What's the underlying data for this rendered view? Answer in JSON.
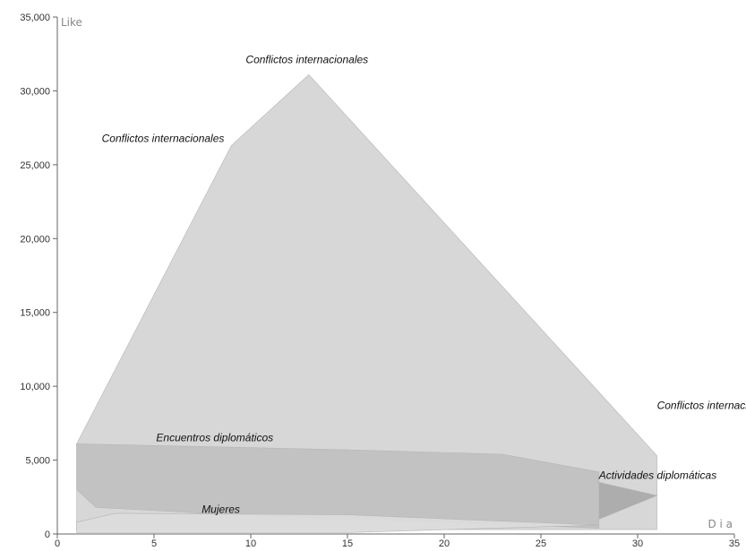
{
  "chart_data": {
    "type": "area",
    "xlabel": "D i a",
    "ylabel": "Like",
    "xlim": [
      0,
      35
    ],
    "ylim": [
      0,
      35000
    ],
    "x_ticks": [
      0,
      5,
      10,
      15,
      20,
      25,
      30,
      35
    ],
    "y_ticks": [
      0,
      5000,
      10000,
      15000,
      20000,
      25000,
      30000,
      35000
    ],
    "y_tick_labels": [
      "0",
      "5,000",
      "10,000",
      "15,000",
      "20,000",
      "25,000",
      "30,000",
      "35,000"
    ],
    "grid": false,
    "series": [
      {
        "label": "Conflictos internacionales",
        "color": "#d4d4d4",
        "points": [
          [
            1,
            6100
          ],
          [
            9,
            26300
          ],
          [
            13,
            31100
          ],
          [
            31,
            5300
          ],
          [
            31,
            300
          ],
          [
            1,
            300
          ]
        ]
      },
      {
        "label": "Encuentros diplomáticos",
        "color": "#c0c0c0",
        "points": [
          [
            1,
            6100
          ],
          [
            15,
            5700
          ],
          [
            23,
            5400
          ],
          [
            28,
            4200
          ],
          [
            28,
            400
          ],
          [
            9,
            1300
          ],
          [
            2,
            1800
          ],
          [
            1,
            3000
          ]
        ]
      },
      {
        "label": "Actividades diplomáticas",
        "color": "#a9a9a9",
        "points": [
          [
            28,
            3500
          ],
          [
            31,
            2600
          ],
          [
            28,
            1000
          ]
        ]
      },
      {
        "label": "Mujeres",
        "color": "#dcdcdc",
        "points": [
          [
            1,
            800
          ],
          [
            3,
            1400
          ],
          [
            15,
            1300
          ],
          [
            28,
            600
          ],
          [
            15,
            100
          ],
          [
            1,
            100
          ]
        ]
      }
    ],
    "annotations": [
      {
        "text": "Conflictos internacionales",
        "x": 13,
        "y": 31100
      },
      {
        "text": "Conflictos internacionales",
        "x": 9,
        "y": 26300
      },
      {
        "text": "Conflictos internacionales",
        "x": 31,
        "y": 7500
      },
      {
        "text": "Encuentros diplomáticos",
        "x": 4,
        "y": 6100
      },
      {
        "text": "Actividades diplomáticas",
        "x": 28,
        "y": 3500
      },
      {
        "text": "Mujeres",
        "x": 7,
        "y": 1300
      }
    ]
  }
}
